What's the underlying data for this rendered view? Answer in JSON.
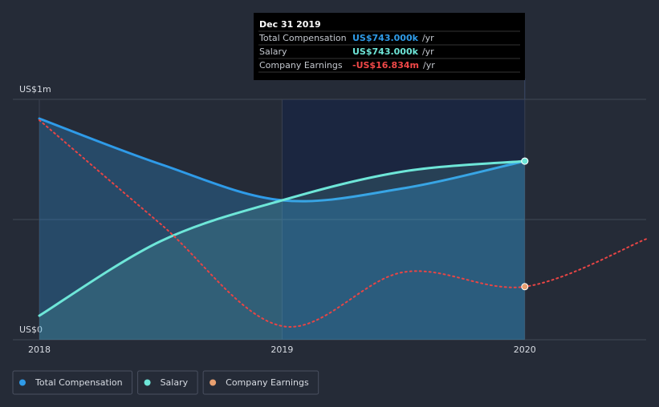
{
  "chart_data": {
    "type": "line",
    "x": [
      2018,
      2018.5,
      2019,
      2019.5,
      2020
    ],
    "xlim": [
      2018,
      2020.5
    ],
    "xticks": [
      2018,
      2019,
      2020
    ],
    "ylim": [
      0,
      1
    ],
    "yticks": [
      {
        "value": 0,
        "label": "US$0"
      },
      {
        "value": 0.5,
        "label": null
      },
      {
        "value": 1,
        "label": "US$1m"
      }
    ],
    "y2lim": [
      -25,
      12
    ],
    "grid": true,
    "series": [
      {
        "name": "Total Compensation",
        "color": "#2f9be8",
        "values": [
          0.92,
          0.73,
          0.58,
          0.63,
          0.743
        ]
      },
      {
        "name": "Salary",
        "color": "#6ee6d8",
        "values": [
          0.1,
          0.41,
          0.58,
          0.7,
          0.743
        ]
      },
      {
        "name": "Company Earnings",
        "color": "#e84545",
        "axis": "y2",
        "x": [
          2018,
          2018.5,
          2019,
          2019.5,
          2020,
          2020.5
        ],
        "values": [
          8.8,
          -7.2,
          -22.9,
          -14.6,
          -16.834,
          -9.5
        ]
      }
    ],
    "tooltip": {
      "title": "Dec 31 2019",
      "rows": [
        {
          "label": "Total Compensation",
          "value": "US$743.000k",
          "unit": "/yr"
        },
        {
          "label": "Salary",
          "value": "US$743.000k",
          "unit": "/yr"
        },
        {
          "label": "Company Earnings",
          "value": "-US$16.834m",
          "unit": "/yr"
        }
      ]
    }
  }
}
